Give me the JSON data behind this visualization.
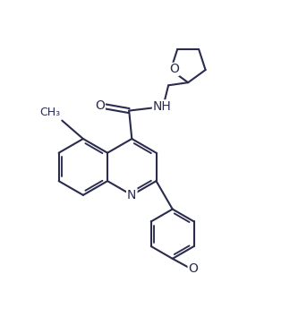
{
  "bg_color": "#ffffff",
  "line_color": "#2b2b4e",
  "line_width": 1.5,
  "font_size": 9,
  "fig_width": 3.24,
  "fig_height": 3.54,
  "dpi": 100,
  "xlim": [
    0,
    10
  ],
  "ylim": [
    0,
    11
  ]
}
